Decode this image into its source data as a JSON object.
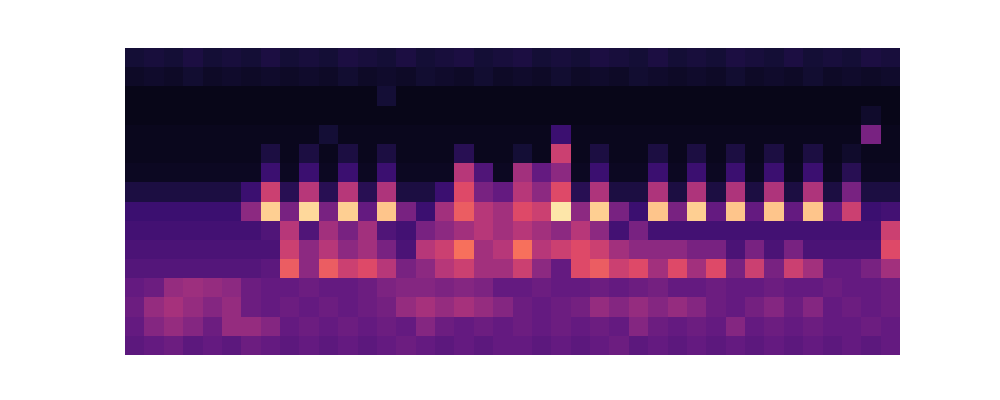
{
  "chart_data": {
    "type": "heatmap",
    "color": "magma",
    "tick_labels": false,
    "cells": [
      [
        0.1,
        0.11,
        0.1,
        0.12,
        0.1,
        0.11,
        0.1,
        0.12,
        0.1,
        0.11,
        0.1,
        0.12,
        0.11,
        0.1,
        0.12,
        0.1,
        0.11,
        0.12,
        0.1,
        0.11,
        0.12,
        0.1,
        0.11,
        0.1,
        0.12,
        0.11,
        0.1,
        0.12,
        0.1,
        0.11,
        0.1,
        0.12,
        0.11,
        0.1,
        0.12,
        0.1,
        0.11,
        0.1,
        0.12,
        0.11
      ],
      [
        0.07,
        0.08,
        0.07,
        0.09,
        0.07,
        0.08,
        0.07,
        0.08,
        0.07,
        0.08,
        0.07,
        0.09,
        0.07,
        0.08,
        0.07,
        0.09,
        0.08,
        0.07,
        0.09,
        0.07,
        0.08,
        0.07,
        0.09,
        0.07,
        0.08,
        0.07,
        0.09,
        0.08,
        0.07,
        0.08,
        0.07,
        0.09,
        0.07,
        0.08,
        0.07,
        0.09,
        0.07,
        0.08,
        0.07,
        0.08
      ],
      [
        0.04,
        0.04,
        0.04,
        0.04,
        0.04,
        0.04,
        0.04,
        0.04,
        0.04,
        0.04,
        0.04,
        0.04,
        0.04,
        0.1,
        0.04,
        0.04,
        0.04,
        0.04,
        0.04,
        0.04,
        0.04,
        0.04,
        0.04,
        0.04,
        0.04,
        0.04,
        0.04,
        0.04,
        0.04,
        0.04,
        0.04,
        0.04,
        0.04,
        0.04,
        0.04,
        0.04,
        0.04,
        0.04,
        0.04,
        0.04
      ],
      [
        0.04,
        0.04,
        0.04,
        0.04,
        0.04,
        0.04,
        0.04,
        0.04,
        0.04,
        0.04,
        0.04,
        0.04,
        0.04,
        0.04,
        0.04,
        0.04,
        0.04,
        0.04,
        0.04,
        0.04,
        0.04,
        0.04,
        0.04,
        0.04,
        0.04,
        0.04,
        0.04,
        0.04,
        0.04,
        0.04,
        0.04,
        0.04,
        0.04,
        0.04,
        0.04,
        0.04,
        0.04,
        0.04,
        0.08,
        0.04
      ],
      [
        0.05,
        0.05,
        0.05,
        0.05,
        0.05,
        0.05,
        0.05,
        0.05,
        0.05,
        0.05,
        0.1,
        0.05,
        0.05,
        0.05,
        0.05,
        0.05,
        0.05,
        0.05,
        0.05,
        0.05,
        0.05,
        0.05,
        0.2,
        0.05,
        0.05,
        0.05,
        0.05,
        0.05,
        0.05,
        0.05,
        0.05,
        0.05,
        0.05,
        0.05,
        0.05,
        0.05,
        0.05,
        0.05,
        0.35,
        0.05
      ],
      [
        0.05,
        0.05,
        0.05,
        0.05,
        0.05,
        0.05,
        0.05,
        0.12,
        0.05,
        0.12,
        0.05,
        0.12,
        0.05,
        0.12,
        0.05,
        0.05,
        0.05,
        0.15,
        0.05,
        0.05,
        0.1,
        0.05,
        0.55,
        0.05,
        0.12,
        0.05,
        0.05,
        0.12,
        0.05,
        0.12,
        0.05,
        0.12,
        0.05,
        0.12,
        0.05,
        0.12,
        0.05,
        0.08,
        0.05,
        0.05
      ],
      [
        0.06,
        0.06,
        0.06,
        0.06,
        0.06,
        0.06,
        0.06,
        0.2,
        0.06,
        0.2,
        0.06,
        0.2,
        0.06,
        0.2,
        0.06,
        0.06,
        0.06,
        0.5,
        0.25,
        0.06,
        0.45,
        0.3,
        0.4,
        0.06,
        0.2,
        0.06,
        0.06,
        0.2,
        0.06,
        0.2,
        0.06,
        0.2,
        0.06,
        0.2,
        0.06,
        0.2,
        0.06,
        0.15,
        0.06,
        0.06
      ],
      [
        0.12,
        0.12,
        0.12,
        0.12,
        0.12,
        0.12,
        0.2,
        0.55,
        0.15,
        0.5,
        0.15,
        0.5,
        0.15,
        0.48,
        0.12,
        0.12,
        0.2,
        0.6,
        0.35,
        0.3,
        0.5,
        0.4,
        0.6,
        0.15,
        0.48,
        0.12,
        0.12,
        0.48,
        0.12,
        0.48,
        0.12,
        0.48,
        0.12,
        0.48,
        0.12,
        0.48,
        0.12,
        0.35,
        0.12,
        0.12
      ],
      [
        0.2,
        0.2,
        0.2,
        0.2,
        0.2,
        0.2,
        0.4,
        0.9,
        0.35,
        0.92,
        0.35,
        0.9,
        0.3,
        0.88,
        0.35,
        0.2,
        0.45,
        0.65,
        0.5,
        0.45,
        0.6,
        0.55,
        0.95,
        0.4,
        0.9,
        0.35,
        0.2,
        0.88,
        0.35,
        0.9,
        0.3,
        0.88,
        0.3,
        0.88,
        0.3,
        0.88,
        0.3,
        0.55,
        0.2,
        0.22
      ],
      [
        0.22,
        0.22,
        0.22,
        0.22,
        0.22,
        0.22,
        0.22,
        0.25,
        0.5,
        0.25,
        0.45,
        0.35,
        0.45,
        0.25,
        0.22,
        0.35,
        0.4,
        0.45,
        0.5,
        0.45,
        0.5,
        0.45,
        0.4,
        0.5,
        0.4,
        0.22,
        0.35,
        0.22,
        0.22,
        0.22,
        0.22,
        0.22,
        0.22,
        0.22,
        0.22,
        0.22,
        0.22,
        0.22,
        0.22,
        0.55
      ],
      [
        0.24,
        0.24,
        0.24,
        0.24,
        0.24,
        0.24,
        0.24,
        0.24,
        0.55,
        0.4,
        0.5,
        0.4,
        0.45,
        0.35,
        0.24,
        0.5,
        0.55,
        0.7,
        0.45,
        0.5,
        0.7,
        0.5,
        0.55,
        0.6,
        0.55,
        0.45,
        0.4,
        0.4,
        0.4,
        0.35,
        0.35,
        0.24,
        0.35,
        0.24,
        0.35,
        0.24,
        0.24,
        0.24,
        0.24,
        0.6
      ],
      [
        0.26,
        0.26,
        0.26,
        0.26,
        0.26,
        0.26,
        0.26,
        0.28,
        0.65,
        0.4,
        0.65,
        0.55,
        0.6,
        0.5,
        0.35,
        0.4,
        0.5,
        0.55,
        0.45,
        0.45,
        0.55,
        0.4,
        0.3,
        0.6,
        0.65,
        0.55,
        0.6,
        0.45,
        0.6,
        0.45,
        0.6,
        0.35,
        0.55,
        0.35,
        0.55,
        0.45,
        0.3,
        0.3,
        0.35,
        0.45
      ],
      [
        0.3,
        0.32,
        0.42,
        0.44,
        0.42,
        0.4,
        0.32,
        0.3,
        0.3,
        0.32,
        0.3,
        0.3,
        0.32,
        0.36,
        0.38,
        0.38,
        0.36,
        0.38,
        0.36,
        0.3,
        0.3,
        0.32,
        0.3,
        0.3,
        0.32,
        0.3,
        0.32,
        0.34,
        0.3,
        0.3,
        0.32,
        0.3,
        0.3,
        0.32,
        0.3,
        0.3,
        0.32,
        0.3,
        0.3,
        0.32
      ],
      [
        0.32,
        0.42,
        0.46,
        0.42,
        0.38,
        0.42,
        0.32,
        0.3,
        0.32,
        0.3,
        0.32,
        0.3,
        0.32,
        0.34,
        0.42,
        0.46,
        0.42,
        0.46,
        0.42,
        0.38,
        0.32,
        0.3,
        0.32,
        0.34,
        0.42,
        0.38,
        0.42,
        0.38,
        0.42,
        0.38,
        0.32,
        0.3,
        0.34,
        0.38,
        0.32,
        0.38,
        0.3,
        0.32,
        0.3,
        0.32
      ],
      [
        0.3,
        0.38,
        0.42,
        0.38,
        0.32,
        0.42,
        0.42,
        0.38,
        0.3,
        0.32,
        0.3,
        0.32,
        0.3,
        0.32,
        0.3,
        0.38,
        0.32,
        0.3,
        0.32,
        0.3,
        0.32,
        0.3,
        0.32,
        0.3,
        0.32,
        0.3,
        0.38,
        0.32,
        0.3,
        0.32,
        0.3,
        0.38,
        0.3,
        0.32,
        0.3,
        0.32,
        0.3,
        0.3,
        0.32,
        0.3
      ],
      [
        0.28,
        0.3,
        0.32,
        0.28,
        0.3,
        0.28,
        0.32,
        0.3,
        0.28,
        0.3,
        0.28,
        0.3,
        0.28,
        0.3,
        0.32,
        0.3,
        0.28,
        0.3,
        0.28,
        0.3,
        0.3,
        0.28,
        0.3,
        0.28,
        0.3,
        0.32,
        0.28,
        0.3,
        0.28,
        0.3,
        0.28,
        0.3,
        0.28,
        0.3,
        0.28,
        0.3,
        0.28,
        0.3,
        0.28,
        0.3
      ]
    ]
  }
}
